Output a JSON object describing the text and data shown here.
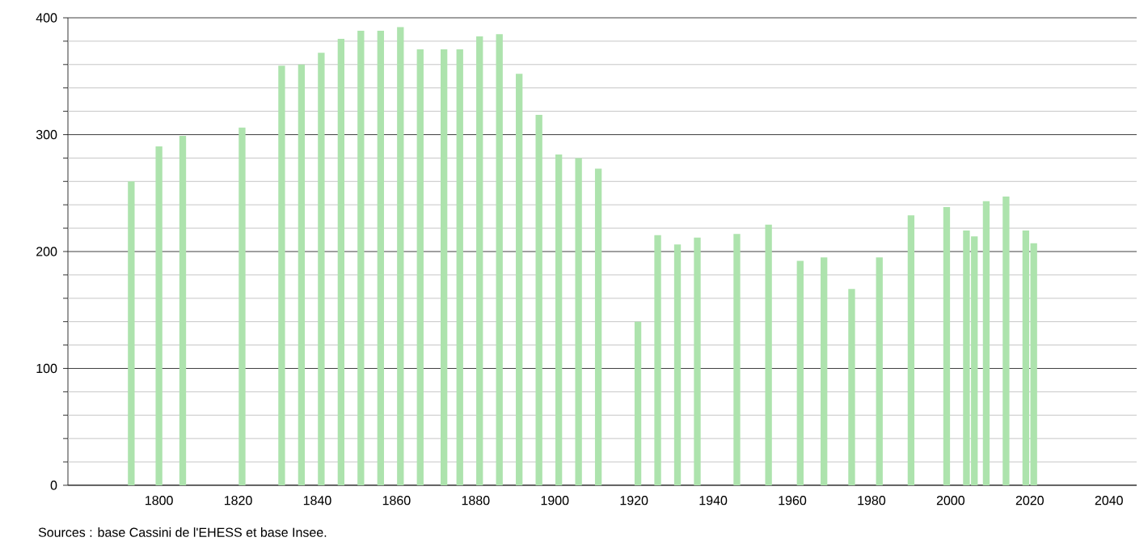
{
  "chart_data": {
    "type": "bar",
    "color": "#ade3ad",
    "x": [
      1793,
      1800,
      1806,
      1821,
      1831,
      1836,
      1841,
      1846,
      1851,
      1856,
      1861,
      1866,
      1872,
      1876,
      1881,
      1886,
      1891,
      1896,
      1901,
      1906,
      1911,
      1921,
      1926,
      1931,
      1936,
      1946,
      1954,
      1962,
      1968,
      1975,
      1982,
      1990,
      1999,
      2004,
      2006,
      2009,
      2014,
      2019,
      2021
    ],
    "values": [
      260,
      290,
      299,
      306,
      359,
      360,
      370,
      382,
      389,
      389,
      392,
      373,
      373,
      373,
      384,
      386,
      352,
      317,
      283,
      280,
      271,
      140,
      214,
      206,
      212,
      215,
      223,
      192,
      195,
      168,
      195,
      231,
      238,
      218,
      213,
      243,
      247,
      218,
      207
    ],
    "xlim": [
      1777,
      2047
    ],
    "xticks": [
      1800,
      1820,
      1840,
      1860,
      1880,
      1900,
      1920,
      1940,
      1960,
      1980,
      2000,
      2020,
      2040
    ],
    "ylim": [
      0,
      400
    ],
    "yticks": [
      0,
      {
        "value": 20,
        "label": null
      },
      {
        "value": 40,
        "label": null
      },
      {
        "value": 60,
        "label": null
      },
      {
        "value": 80,
        "label": null
      },
      100,
      {
        "value": 120,
        "label": null
      },
      {
        "value": 140,
        "label": null
      },
      {
        "value": 160,
        "label": null
      },
      {
        "value": 180,
        "label": null
      },
      200,
      {
        "value": 220,
        "label": null
      },
      {
        "value": 240,
        "label": null
      },
      {
        "value": 260,
        "label": null
      },
      {
        "value": 280,
        "label": null
      },
      300,
      {
        "value": 320,
        "label": null
      },
      {
        "value": 340,
        "label": null
      },
      {
        "value": 360,
        "label": null
      },
      {
        "value": 380,
        "label": null
      },
      400
    ],
    "grid": "y",
    "annotations": [
      "Sources : base Cassini de l'EHESS et base Insee."
    ]
  }
}
